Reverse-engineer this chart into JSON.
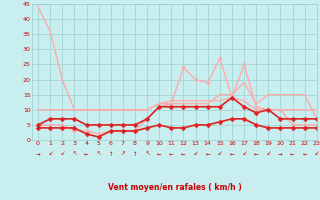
{
  "title": "",
  "xlabel": "Vent moyen/en rafales ( km/h )",
  "xlim": [
    -0.5,
    23
  ],
  "ylim": [
    0,
    45
  ],
  "yticks": [
    0,
    5,
    10,
    15,
    20,
    25,
    30,
    35,
    40,
    45
  ],
  "xticks": [
    0,
    1,
    2,
    3,
    4,
    5,
    6,
    7,
    8,
    9,
    10,
    11,
    12,
    13,
    14,
    15,
    16,
    17,
    18,
    19,
    20,
    21,
    22,
    23
  ],
  "bg_color": "#c8eef0",
  "grid_color": "#9ecece",
  "series": [
    {
      "x": [
        0,
        1,
        2,
        3,
        4,
        5,
        6,
        7,
        8,
        9,
        10,
        11,
        12,
        13,
        14,
        15,
        16,
        17,
        18,
        19,
        20,
        21,
        22,
        23
      ],
      "y": [
        44,
        36,
        20,
        10,
        10,
        10,
        10,
        10,
        10,
        10,
        12,
        13,
        13,
        13,
        13,
        13,
        14,
        13,
        10,
        10,
        10,
        10,
        10,
        10
      ],
      "color": "#ffaaaa",
      "lw": 1.0,
      "marker": null,
      "ms": 0
    },
    {
      "x": [
        0,
        1,
        2,
        3,
        4,
        5,
        6,
        7,
        8,
        9,
        10,
        11,
        12,
        13,
        14,
        15,
        16,
        17,
        18,
        19,
        20,
        21,
        22,
        23
      ],
      "y": [
        10,
        10,
        10,
        10,
        10,
        10,
        10,
        10,
        10,
        10,
        12,
        12,
        12,
        12,
        12,
        15,
        15,
        19,
        12,
        15,
        15,
        15,
        15,
        7
      ],
      "color": "#ffaaaa",
      "lw": 1.0,
      "marker": null,
      "ms": 0
    },
    {
      "x": [
        0,
        1,
        2,
        3,
        4,
        5,
        6,
        7,
        8,
        9,
        10,
        11,
        12,
        13,
        14,
        15,
        16,
        17,
        18,
        19,
        20,
        21,
        22,
        23
      ],
      "y": [
        5,
        5,
        5,
        3,
        3,
        2,
        3,
        3,
        3,
        7,
        11,
        12,
        24,
        20,
        19,
        27,
        14,
        25,
        11,
        10,
        10,
        5,
        5,
        5
      ],
      "color": "#ffaaaa",
      "lw": 1.0,
      "marker": "o",
      "ms": 2
    },
    {
      "x": [
        0,
        1,
        2,
        3,
        4,
        5,
        6,
        7,
        8,
        9,
        10,
        11,
        12,
        13,
        14,
        15,
        16,
        17,
        18,
        19,
        20,
        21,
        22,
        23
      ],
      "y": [
        5,
        7,
        7,
        7,
        5,
        5,
        5,
        5,
        5,
        7,
        11,
        11,
        11,
        11,
        11,
        11,
        14,
        11,
        9,
        10,
        7,
        7,
        7,
        7
      ],
      "color": "#dd2222",
      "lw": 1.2,
      "marker": "D",
      "ms": 2.5
    },
    {
      "x": [
        0,
        1,
        2,
        3,
        4,
        5,
        6,
        7,
        8,
        9,
        10,
        11,
        12,
        13,
        14,
        15,
        16,
        17,
        18,
        19,
        20,
        21,
        22,
        23
      ],
      "y": [
        4,
        4,
        4,
        4,
        2,
        1,
        3,
        3,
        3,
        4,
        5,
        4,
        4,
        5,
        5,
        6,
        7,
        7,
        5,
        4,
        4,
        4,
        4,
        4
      ],
      "color": "#dd2222",
      "lw": 1.2,
      "marker": "D",
      "ms": 2.5
    }
  ],
  "wind_arrows": [
    "→",
    "↙",
    "↙",
    "↖",
    "←",
    "↖",
    "↑",
    "↗",
    "↑",
    "↖",
    "←",
    "←",
    "←",
    "↙",
    "←",
    "↙",
    "←",
    "↙",
    "←",
    "↙",
    "→",
    "←",
    "←",
    "↙"
  ],
  "font_color": "#cc0000"
}
